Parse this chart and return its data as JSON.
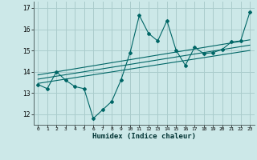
{
  "xlabel": "Humidex (Indice chaleur)",
  "bg_color": "#cce8e8",
  "grid_color": "#aacccc",
  "line_color": "#006666",
  "xlim": [
    -0.5,
    23.5
  ],
  "ylim": [
    11.5,
    17.3
  ],
  "yticks": [
    12,
    13,
    14,
    15,
    16,
    17
  ],
  "xticks": [
    0,
    1,
    2,
    3,
    4,
    5,
    6,
    7,
    8,
    9,
    10,
    11,
    12,
    13,
    14,
    15,
    16,
    17,
    18,
    19,
    20,
    21,
    22,
    23
  ],
  "data_x": [
    0,
    1,
    2,
    3,
    4,
    5,
    6,
    7,
    8,
    9,
    10,
    11,
    12,
    13,
    14,
    15,
    16,
    17,
    18,
    19,
    20,
    21,
    22,
    23
  ],
  "data_y": [
    13.4,
    13.2,
    14.0,
    13.6,
    13.3,
    13.2,
    11.8,
    12.2,
    12.6,
    13.6,
    14.9,
    16.65,
    15.8,
    15.45,
    16.4,
    15.0,
    14.3,
    15.15,
    14.85,
    14.9,
    15.05,
    15.4,
    15.45,
    16.8
  ],
  "reg_lines": [
    {
      "x": [
        0,
        23
      ],
      "y": [
        13.45,
        15.0
      ]
    },
    {
      "x": [
        0,
        23
      ],
      "y": [
        13.65,
        15.25
      ]
    },
    {
      "x": [
        0,
        23
      ],
      "y": [
        13.85,
        15.5
      ]
    }
  ]
}
